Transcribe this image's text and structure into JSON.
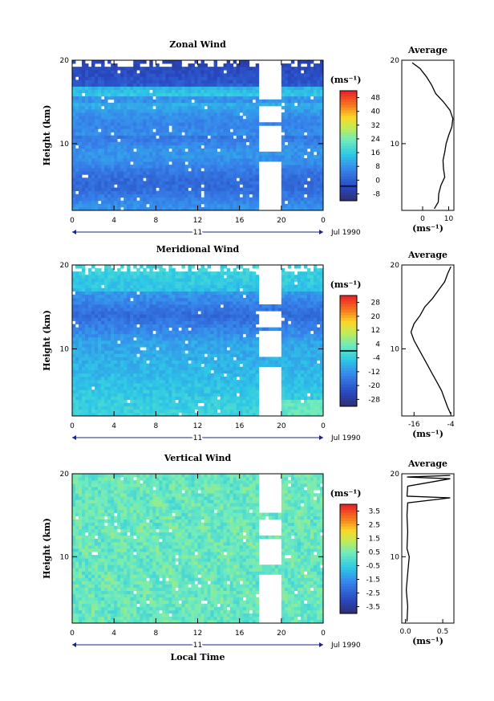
{
  "chart_data": [
    {
      "type": "heatmap",
      "title": "Zonal Wind",
      "ylabel": "Height (km)",
      "xlabel": "",
      "x_ticks": [
        "0",
        "4",
        "8",
        "12",
        "16",
        "20",
        "0"
      ],
      "y_ticks": [
        "10",
        "20"
      ],
      "xlim": [
        0,
        24
      ],
      "ylim": [
        2,
        20
      ],
      "day_label": "11",
      "date_label": "Jul 1990",
      "colorbar": {
        "unit_label": "(ms⁻¹)",
        "ticks": [
          "48",
          "40",
          "32",
          "24",
          "16",
          "8",
          "0",
          "-8"
        ],
        "range": [
          -8,
          52
        ],
        "zero_line": 0
      },
      "profile": {
        "title": "Average",
        "xlabel": "(ms⁻¹)",
        "x_ticks": [
          "0",
          "10"
        ],
        "xlim": [
          -8,
          12
        ],
        "ylim": [
          2,
          20
        ],
        "y_ticks": [
          "10",
          "20"
        ],
        "points": [
          [
            4.5,
            2.2
          ],
          [
            6.0,
            3.0
          ],
          [
            6.2,
            4.0
          ],
          [
            7.0,
            5.0
          ],
          [
            8.5,
            6.0
          ],
          [
            8.0,
            7.0
          ],
          [
            7.8,
            8.0
          ],
          [
            8.5,
            9.0
          ],
          [
            9.0,
            10.0
          ],
          [
            10.0,
            11.0
          ],
          [
            11.2,
            12.0
          ],
          [
            11.6,
            13.0
          ],
          [
            10.5,
            14.0
          ],
          [
            8.0,
            15.0
          ],
          [
            5.0,
            16.0
          ],
          [
            3.5,
            17.0
          ],
          [
            1.5,
            18.0
          ],
          [
            -1.0,
            19.0
          ],
          [
            -4.0,
            19.7
          ]
        ]
      }
    },
    {
      "type": "heatmap",
      "title": "Meridional Wind",
      "ylabel": "Height (km)",
      "xlabel": "",
      "x_ticks": [
        "0",
        "4",
        "8",
        "12",
        "16",
        "20",
        "0"
      ],
      "y_ticks": [
        "10",
        "20"
      ],
      "xlim": [
        0,
        24
      ],
      "ylim": [
        2,
        20
      ],
      "day_label": "11",
      "date_label": "Jul 1990",
      "colorbar": {
        "unit_label": "(ms⁻¹)",
        "ticks": [
          "28",
          "20",
          "12",
          "4",
          "-4",
          "-12",
          "-20",
          "-28"
        ],
        "range": [
          -32,
          32
        ],
        "zero_line": 0
      },
      "profile": {
        "title": "Average",
        "xlabel": "(ms⁻¹)",
        "x_ticks": [
          "-16",
          "-4"
        ],
        "xlim": [
          -20,
          -3
        ],
        "ylim": [
          2,
          20
        ],
        "y_ticks": [
          "10",
          "20"
        ],
        "points": [
          [
            -4.0,
            2.2
          ],
          [
            -5.0,
            3.0
          ],
          [
            -6.0,
            4.0
          ],
          [
            -7.0,
            5.0
          ],
          [
            -8.5,
            6.0
          ],
          [
            -10.0,
            7.0
          ],
          [
            -11.5,
            8.0
          ],
          [
            -13.0,
            9.0
          ],
          [
            -14.5,
            10.0
          ],
          [
            -16.0,
            11.0
          ],
          [
            -17.0,
            12.0
          ],
          [
            -16.0,
            13.0
          ],
          [
            -14.0,
            14.0
          ],
          [
            -12.5,
            15.0
          ],
          [
            -10.0,
            16.0
          ],
          [
            -8.0,
            17.0
          ],
          [
            -6.0,
            18.0
          ],
          [
            -5.0,
            19.0
          ],
          [
            -4.0,
            19.8
          ]
        ]
      }
    },
    {
      "type": "heatmap",
      "title": "Vertical Wind",
      "ylabel": "Height (km)",
      "xlabel": "Local Time",
      "x_ticks": [
        "0",
        "4",
        "8",
        "12",
        "16",
        "20",
        "0"
      ],
      "y_ticks": [
        "10",
        "20"
      ],
      "xlim": [
        0,
        24
      ],
      "ylim": [
        2,
        20
      ],
      "day_label": "11",
      "date_label": "Jul 1990",
      "colorbar": {
        "unit_label": "(ms⁻¹)",
        "ticks": [
          "3.5",
          "2.5",
          "1.5",
          "0.5",
          "-0.5",
          "-1.5",
          "-2.5",
          "-3.5"
        ],
        "range": [
          -4,
          4
        ],
        "zero_line": null
      },
      "profile": {
        "title": "Average",
        "xlabel": "(ms⁻¹)",
        "x_ticks": [
          "0.0",
          "0.5"
        ],
        "xlim": [
          -0.05,
          0.65
        ],
        "ylim": [
          2,
          20
        ],
        "y_ticks": [
          "10",
          "20"
        ],
        "points": [
          [
            0.02,
            2.2
          ],
          [
            0.03,
            4.0
          ],
          [
            0.01,
            6.0
          ],
          [
            0.03,
            8.0
          ],
          [
            0.05,
            10.0
          ],
          [
            0.02,
            11.0
          ],
          [
            0.03,
            13.0
          ],
          [
            0.02,
            15.0
          ],
          [
            0.03,
            16.5
          ],
          [
            0.6,
            17.1
          ],
          [
            0.02,
            17.3
          ],
          [
            0.03,
            18.5
          ],
          [
            0.6,
            19.4
          ],
          [
            0.02,
            19.6
          ],
          [
            0.6,
            19.8
          ]
        ]
      }
    }
  ]
}
